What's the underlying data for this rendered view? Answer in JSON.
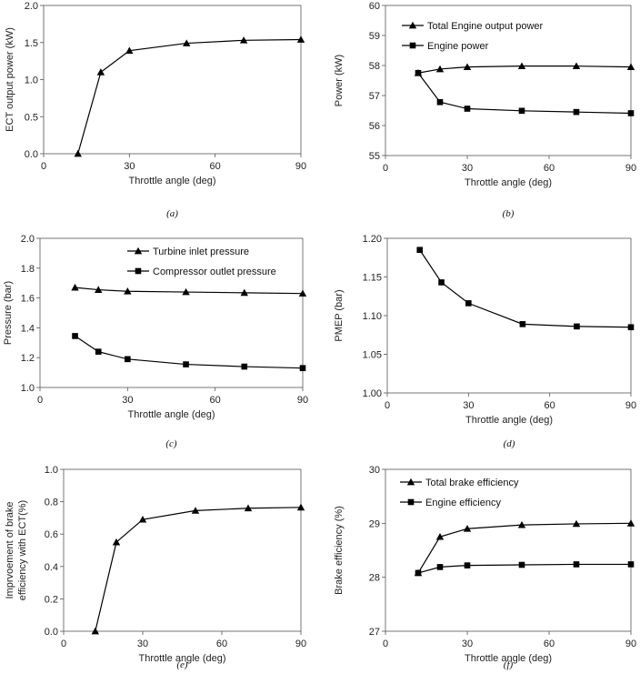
{
  "chart_data": [
    {
      "id": "a",
      "type": "line",
      "caption": "(a)",
      "xlabel": "Throttle angle (deg)",
      "ylabel": "ECT output power (kW)",
      "xlim": [
        0,
        90
      ],
      "ylim": [
        0,
        2.0
      ],
      "xticks": [
        "0",
        "30",
        "60",
        "90"
      ],
      "yticks": [
        "0.0",
        "0.5",
        "1.0",
        "1.5",
        "2.0"
      ],
      "series": [
        {
          "name": "ECT output power",
          "marker": "triangle",
          "x": [
            12,
            20,
            30,
            50,
            70,
            90
          ],
          "y": [
            0.0,
            1.1,
            1.39,
            1.49,
            1.53,
            1.54
          ]
        }
      ]
    },
    {
      "id": "b",
      "type": "line",
      "caption": "(b)",
      "xlabel": "Throttle angle (deg)",
      "ylabel": "Power (kW)",
      "xlim": [
        0,
        90
      ],
      "ylim": [
        55,
        60
      ],
      "xticks": [
        "0",
        "30",
        "60",
        "90"
      ],
      "yticks": [
        "55",
        "56",
        "57",
        "58",
        "59",
        "60"
      ],
      "legend": "top-left",
      "series": [
        {
          "name": "Total Engine output power",
          "marker": "triangle",
          "x": [
            12,
            20,
            30,
            50,
            70,
            90
          ],
          "y": [
            57.75,
            57.88,
            57.95,
            57.98,
            57.98,
            57.95
          ]
        },
        {
          "name": "Engine  power",
          "marker": "square",
          "x": [
            12,
            20,
            30,
            50,
            70,
            90
          ],
          "y": [
            57.75,
            56.78,
            56.56,
            56.49,
            56.45,
            56.41
          ]
        }
      ]
    },
    {
      "id": "c",
      "type": "line",
      "caption": "(c)",
      "xlabel": "Throttle angle (deg)",
      "ylabel": "Pressure (bar)",
      "xlim": [
        0,
        90
      ],
      "ylim": [
        1.0,
        2.0
      ],
      "xticks": [
        "0",
        "30",
        "60",
        "90"
      ],
      "yticks": [
        "1.0",
        "1.2",
        "1.4",
        "1.6",
        "1.8",
        "2.0"
      ],
      "legend": "top-right",
      "series": [
        {
          "name": "Turbine inlet pressure",
          "marker": "triangle",
          "x": [
            12,
            20,
            30,
            50,
            70,
            90
          ],
          "y": [
            1.67,
            1.655,
            1.645,
            1.64,
            1.635,
            1.63
          ]
        },
        {
          "name": "Compressor outlet pressure",
          "marker": "square",
          "x": [
            12,
            20,
            30,
            50,
            70,
            90
          ],
          "y": [
            1.345,
            1.24,
            1.19,
            1.155,
            1.14,
            1.13
          ]
        }
      ]
    },
    {
      "id": "d",
      "type": "line",
      "caption": "(d)",
      "xlabel": "Throttle angle (deg)",
      "ylabel": "PMEP (bar)",
      "xlim": [
        0,
        90
      ],
      "ylim": [
        1.0,
        1.2
      ],
      "xticks": [
        "0",
        "30",
        "60",
        "90"
      ],
      "yticks": [
        "1.00",
        "1.05",
        "1.10",
        "1.15",
        "1.20"
      ],
      "series": [
        {
          "name": "PMEP",
          "marker": "square",
          "x": [
            12,
            20,
            30,
            50,
            70,
            90
          ],
          "y": [
            1.185,
            1.143,
            1.116,
            1.089,
            1.086,
            1.085
          ]
        }
      ]
    },
    {
      "id": "e",
      "type": "line",
      "caption": "(e)",
      "xlabel": "Throttle angle (deg)",
      "ylabel": "Imprvoement of brake efficiency  with ECT(%)",
      "ylabel_lines": [
        "Imprvoement of brake",
        "efficiency  with ECT(%)"
      ],
      "xlim": [
        0,
        90
      ],
      "ylim": [
        0,
        1.0
      ],
      "xticks": [
        "0",
        "30",
        "60",
        "90"
      ],
      "yticks": [
        "0.0",
        "0.2",
        "0.4",
        "0.6",
        "0.8",
        "1.0"
      ],
      "series": [
        {
          "name": "Improvement of brake efficiency",
          "marker": "triangle",
          "x": [
            12,
            20,
            30,
            50,
            70,
            90
          ],
          "y": [
            0.0,
            0.55,
            0.69,
            0.745,
            0.76,
            0.765
          ]
        }
      ]
    },
    {
      "id": "f",
      "type": "line",
      "caption": "(f)",
      "xlabel": "Throttle angle (deg)",
      "ylabel": "Brake efficiency (%)",
      "xlim": [
        0,
        90
      ],
      "ylim": [
        27,
        30
      ],
      "xticks": [
        "0",
        "30",
        "60",
        "90"
      ],
      "yticks": [
        "27",
        "28",
        "29",
        "30"
      ],
      "legend": "top-left",
      "series": [
        {
          "name": "Total brake efficiency",
          "marker": "triangle",
          "x": [
            12,
            20,
            30,
            50,
            70,
            90
          ],
          "y": [
            28.08,
            28.75,
            28.9,
            28.97,
            28.99,
            29.0
          ]
        },
        {
          "name": "Engine efficiency",
          "marker": "square",
          "x": [
            12,
            20,
            30,
            50,
            70,
            90
          ],
          "y": [
            28.08,
            28.19,
            28.22,
            28.23,
            28.24,
            28.24
          ]
        }
      ]
    }
  ]
}
